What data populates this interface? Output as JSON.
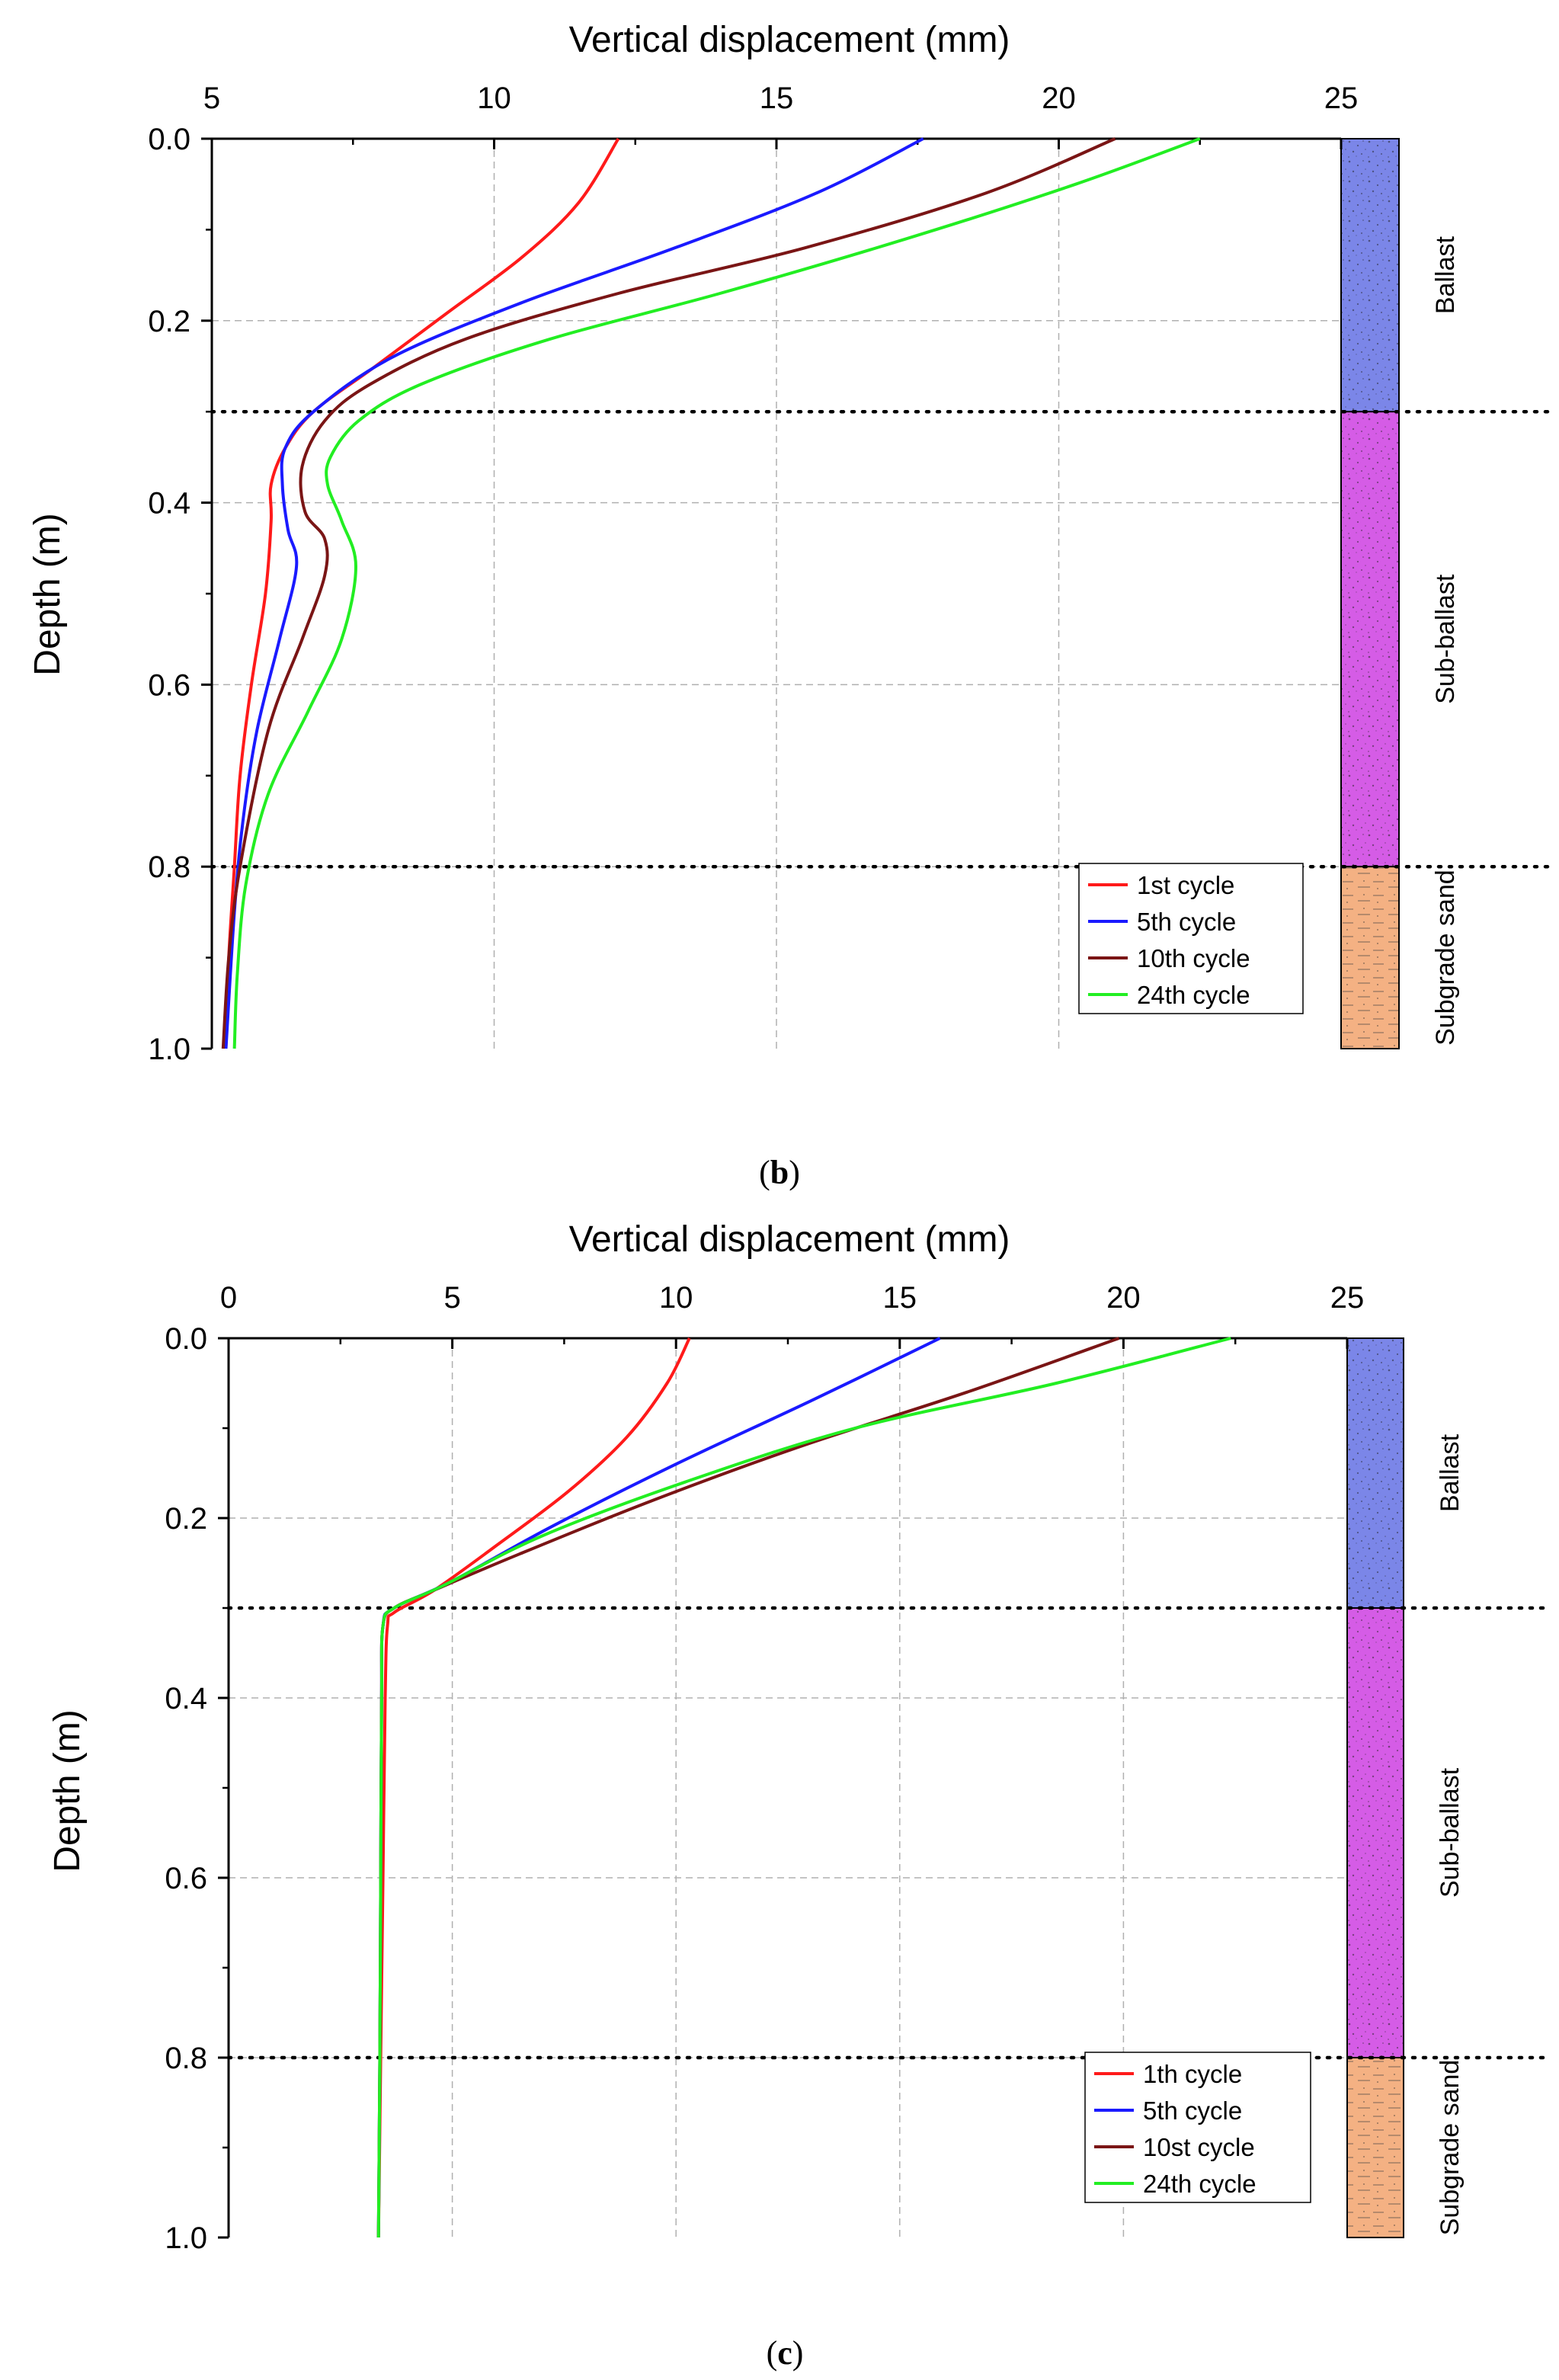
{
  "layer_colors": {
    "ballast": "#7b86e8",
    "sub_ballast": "#d55ce6",
    "subgrade": "#f4b183"
  },
  "series_colors": [
    "#ff1a1a",
    "#1a1aff",
    "#7a1515",
    "#22ee22"
  ],
  "chart_data": [
    {
      "id": "b",
      "type": "line",
      "caption_letter": "b",
      "xlabel": "Vertical displacement (mm)",
      "ylabel": "Depth (m)",
      "xlim": [
        5,
        25
      ],
      "ylim": [
        0.0,
        1.0
      ],
      "x_ticks": [
        "5",
        "10",
        "15",
        "20",
        "25"
      ],
      "y_ticks": [
        "0.0",
        "0.2",
        "0.4",
        "0.6",
        "0.8",
        "1.0"
      ],
      "layers": [
        {
          "name": "Ballast",
          "top": 0.0,
          "bottom": 0.3
        },
        {
          "name": "Sub-ballast",
          "top": 0.3,
          "bottom": 0.8
        },
        {
          "name": "Subgrade sand",
          "top": 0.8,
          "bottom": 1.0
        }
      ],
      "series": [
        {
          "name": "1st cycle",
          "points": [
            [
              12.2,
              0.0
            ],
            [
              11.5,
              0.07
            ],
            [
              10.5,
              0.13
            ],
            [
              9.2,
              0.19
            ],
            [
              7.9,
              0.25
            ],
            [
              6.8,
              0.3
            ],
            [
              6.3,
              0.34
            ],
            [
              6.05,
              0.38
            ],
            [
              6.05,
              0.42
            ],
            [
              5.95,
              0.5
            ],
            [
              5.7,
              0.6
            ],
            [
              5.5,
              0.7
            ],
            [
              5.4,
              0.8
            ],
            [
              5.3,
              0.9
            ],
            [
              5.25,
              1.0
            ]
          ]
        },
        {
          "name": "5th cycle",
          "points": [
            [
              17.6,
              0.0
            ],
            [
              15.7,
              0.06
            ],
            [
              13.2,
              0.12
            ],
            [
              10.5,
              0.18
            ],
            [
              8.2,
              0.24
            ],
            [
              6.8,
              0.3
            ],
            [
              6.3,
              0.34
            ],
            [
              6.25,
              0.38
            ],
            [
              6.35,
              0.43
            ],
            [
              6.5,
              0.47
            ],
            [
              6.2,
              0.55
            ],
            [
              5.8,
              0.65
            ],
            [
              5.55,
              0.75
            ],
            [
              5.4,
              0.85
            ],
            [
              5.25,
              1.0
            ]
          ]
        },
        {
          "name": "10th cycle",
          "points": [
            [
              21.0,
              0.0
            ],
            [
              18.7,
              0.06
            ],
            [
              15.5,
              0.12
            ],
            [
              12.2,
              0.17
            ],
            [
              9.5,
              0.22
            ],
            [
              7.8,
              0.27
            ],
            [
              7.0,
              0.31
            ],
            [
              6.6,
              0.36
            ],
            [
              6.65,
              0.41
            ],
            [
              7.0,
              0.44
            ],
            [
              7.0,
              0.48
            ],
            [
              6.6,
              0.55
            ],
            [
              6.0,
              0.65
            ],
            [
              5.5,
              0.8
            ],
            [
              5.3,
              0.9
            ],
            [
              5.2,
              1.0
            ]
          ]
        },
        {
          "name": "24th cycle",
          "points": [
            [
              22.5,
              0.0
            ],
            [
              20.3,
              0.05
            ],
            [
              17.3,
              0.11
            ],
            [
              14.0,
              0.17
            ],
            [
              11.0,
              0.22
            ],
            [
              8.7,
              0.27
            ],
            [
              7.6,
              0.31
            ],
            [
              7.1,
              0.35
            ],
            [
              7.05,
              0.38
            ],
            [
              7.3,
              0.42
            ],
            [
              7.55,
              0.47
            ],
            [
              7.3,
              0.55
            ],
            [
              6.7,
              0.63
            ],
            [
              6.0,
              0.72
            ],
            [
              5.6,
              0.82
            ],
            [
              5.45,
              0.92
            ],
            [
              5.4,
              1.0
            ]
          ]
        }
      ],
      "legend": [
        "1st cycle",
        "5th cycle",
        "10th cycle",
        "24th cycle"
      ]
    },
    {
      "id": "c",
      "type": "line",
      "caption_letter": "c",
      "xlabel": "Vertical displacement (mm)",
      "ylabel": "Depth (m)",
      "xlim": [
        0,
        25
      ],
      "ylim": [
        0.0,
        1.0
      ],
      "x_ticks": [
        "0",
        "5",
        "10",
        "15",
        "20",
        "25"
      ],
      "y_ticks": [
        "0.0",
        "0.2",
        "0.4",
        "0.6",
        "0.8",
        "1.0"
      ],
      "layers": [
        {
          "name": "Ballast",
          "top": 0.0,
          "bottom": 0.3
        },
        {
          "name": "Sub-ballast",
          "top": 0.3,
          "bottom": 0.8
        },
        {
          "name": "Subgrade sand",
          "top": 0.8,
          "bottom": 1.0
        }
      ],
      "series": [
        {
          "name": "1th cycle",
          "points": [
            [
              10.3,
              0.0
            ],
            [
              9.8,
              0.05
            ],
            [
              8.9,
              0.11
            ],
            [
              7.6,
              0.17
            ],
            [
              6.0,
              0.23
            ],
            [
              4.6,
              0.28
            ],
            [
              3.7,
              0.305
            ],
            [
              3.55,
              0.32
            ],
            [
              3.5,
              0.4
            ],
            [
              3.45,
              0.6
            ],
            [
              3.4,
              0.8
            ],
            [
              3.35,
              1.0
            ]
          ]
        },
        {
          "name": "5th cycle",
          "points": [
            [
              15.9,
              0.0
            ],
            [
              13.0,
              0.07
            ],
            [
              10.0,
              0.14
            ],
            [
              7.2,
              0.21
            ],
            [
              5.0,
              0.27
            ],
            [
              3.7,
              0.3
            ],
            [
              3.45,
              0.32
            ],
            [
              3.42,
              0.4
            ],
            [
              3.4,
              0.6
            ],
            [
              3.38,
              0.8
            ],
            [
              3.35,
              1.0
            ]
          ]
        },
        {
          "name": "10st cycle",
          "points": [
            [
              19.9,
              0.0
            ],
            [
              16.5,
              0.06
            ],
            [
              12.8,
              0.12
            ],
            [
              9.5,
              0.18
            ],
            [
              6.5,
              0.24
            ],
            [
              4.6,
              0.28
            ],
            [
              3.7,
              0.3
            ],
            [
              3.45,
              0.32
            ],
            [
              3.42,
              0.4
            ],
            [
              3.4,
              0.6
            ],
            [
              3.38,
              0.8
            ],
            [
              3.35,
              1.0
            ]
          ]
        },
        {
          "name": "24th cycle",
          "points": [
            [
              22.4,
              0.0
            ],
            [
              18.5,
              0.05
            ],
            [
              14.0,
              0.1
            ],
            [
              10.2,
              0.16
            ],
            [
              7.0,
              0.22
            ],
            [
              4.8,
              0.275
            ],
            [
              3.7,
              0.3
            ],
            [
              3.45,
              0.32
            ],
            [
              3.42,
              0.4
            ],
            [
              3.4,
              0.6
            ],
            [
              3.38,
              0.8
            ],
            [
              3.35,
              1.0
            ]
          ]
        }
      ],
      "legend": [
        "1th cycle",
        "5th cycle",
        "10st cycle",
        "24th cycle"
      ]
    }
  ]
}
